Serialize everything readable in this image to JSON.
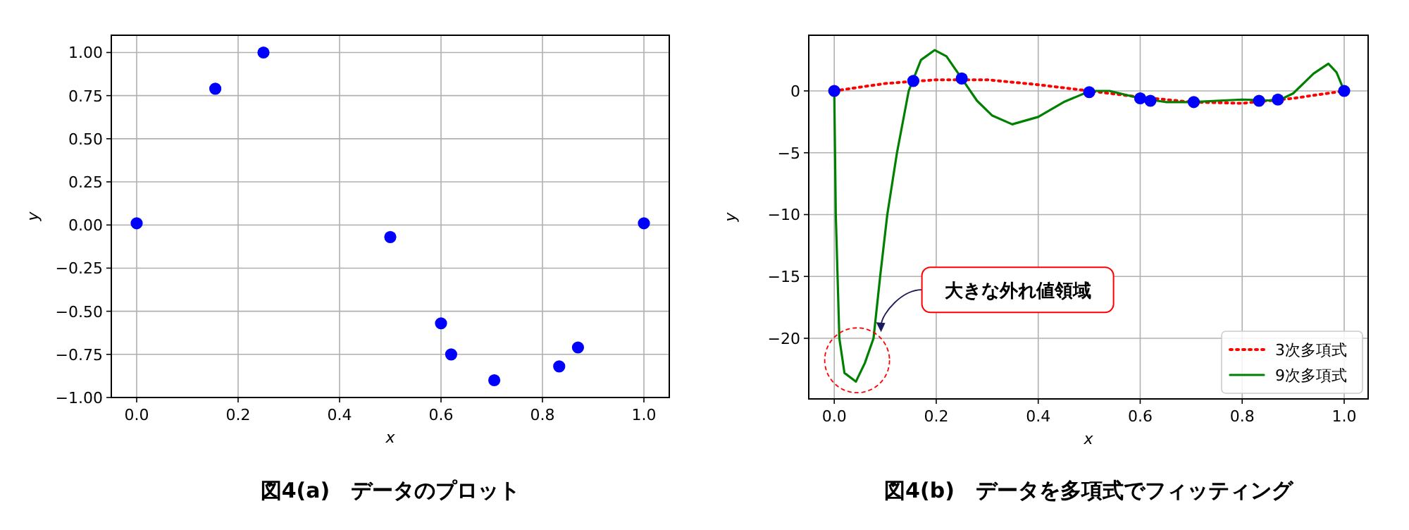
{
  "chart_data": [
    {
      "type": "scatter",
      "title": "図4(a)　データのプロット",
      "xlabel": "x",
      "ylabel": "y",
      "x": [
        0,
        0.155,
        0.25,
        0.5,
        0.6,
        0.62,
        0.705,
        0.833,
        0.87,
        1.0
      ],
      "values": [
        0.01,
        0.79,
        1.0,
        -0.07,
        -0.57,
        -0.75,
        -0.9,
        -0.82,
        -0.71,
        0.01
      ],
      "color": "#0000ff",
      "marker": "circle",
      "grid": true,
      "xlim": [
        -0.05,
        1.05
      ],
      "ylim": [
        -1.0,
        1.1
      ],
      "xticks": [
        {
          "value": 0,
          "label": "0.0"
        },
        {
          "value": 0.2,
          "label": "0.2"
        },
        {
          "value": 0.4,
          "label": "0.4"
        },
        {
          "value": 0.6,
          "label": "0.6"
        },
        {
          "value": 0.8,
          "label": "0.8"
        },
        {
          "value": 1.0,
          "label": "1.0"
        }
      ],
      "yticks": [
        {
          "value": -1.0,
          "label": "−1.00"
        },
        {
          "value": -0.75,
          "label": "−0.75"
        },
        {
          "value": -0.5,
          "label": "−0.50"
        },
        {
          "value": -0.25,
          "label": "−0.25"
        },
        {
          "value": 0,
          "label": "0.00"
        },
        {
          "value": 0.25,
          "label": "0.25"
        },
        {
          "value": 0.5,
          "label": "0.50"
        },
        {
          "value": 0.75,
          "label": "0.75"
        },
        {
          "value": 1.0,
          "label": "1.00"
        }
      ]
    },
    {
      "type": "line",
      "title": "図4(b)　データを多項式でフィッティング",
      "xlabel": "x",
      "ylabel": "y",
      "series": [
        {
          "type": "scatter",
          "color": "#0000ff",
          "marker": "circle",
          "x": [
            0,
            0.155,
            0.25,
            0.5,
            0.6,
            0.62,
            0.705,
            0.833,
            0.87,
            1.0
          ],
          "values": [
            0,
            0.8,
            1.0,
            -0.1,
            -0.6,
            -0.8,
            -0.9,
            -0.8,
            -0.7,
            0
          ]
        },
        {
          "name": "3次多項式",
          "color": "#ff0000",
          "line_style": "dotted",
          "x": [
            0,
            0.1,
            0.2,
            0.3,
            0.4,
            0.5,
            0.6,
            0.7,
            0.8,
            0.9,
            1.0
          ],
          "values": [
            0,
            0.6,
            0.9,
            0.9,
            0.5,
            0,
            -0.5,
            -0.9,
            -1.0,
            -0.6,
            0
          ]
        },
        {
          "name": "9次多項式",
          "color": "#008000",
          "line_style": "solid",
          "x": [
            0,
            0.003,
            0.01,
            0.02,
            0.0425,
            0.06,
            0.077,
            0.09,
            0.104,
            0.123,
            0.146,
            0.17,
            0.197,
            0.22,
            0.25,
            0.28,
            0.31,
            0.349,
            0.4,
            0.45,
            0.502,
            0.54,
            0.6,
            0.65,
            0.7,
            0.75,
            0.8,
            0.87,
            0.9,
            0.94,
            0.969,
            0.985,
            1.0
          ],
          "values": [
            0,
            -10,
            -20,
            -22.8,
            -23.5,
            -22,
            -20,
            -15,
            -10,
            -5,
            0,
            2.5,
            3.3,
            2.8,
            1.0,
            -0.8,
            -2.0,
            -2.7,
            -2.1,
            -0.9,
            0,
            0,
            -0.6,
            -0.9,
            -0.9,
            -0.8,
            -0.7,
            -0.8,
            -0.2,
            1.4,
            2.2,
            1.5,
            0
          ]
        }
      ],
      "annotations": [
        {
          "text": "大きな外れ値領域",
          "x": 0.089,
          "y": -19.5
        }
      ],
      "legend": "bottom right",
      "grid": true,
      "xlim": [
        -0.05,
        1.047
      ],
      "ylim": [
        -24.9,
        4.5
      ],
      "xticks": [
        {
          "value": 0,
          "label": "0.0"
        },
        {
          "value": 0.2,
          "label": "0.2"
        },
        {
          "value": 0.4,
          "label": "0.4"
        },
        {
          "value": 0.6,
          "label": "0.6"
        },
        {
          "value": 0.8,
          "label": "0.8"
        },
        {
          "value": 1.0,
          "label": "1.0"
        }
      ],
      "yticks": [
        {
          "value": -20,
          "label": "−20"
        },
        {
          "value": -15,
          "label": "−15"
        },
        {
          "value": -10,
          "label": "−10"
        },
        {
          "value": -5,
          "label": "−5"
        },
        0
      ]
    }
  ]
}
